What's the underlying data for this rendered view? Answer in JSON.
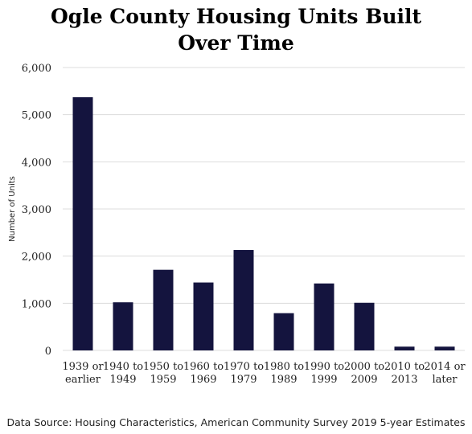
{
  "chart_data": {
    "type": "bar",
    "title_lines": [
      "Ogle County Housing Units Built",
      "Over Time"
    ],
    "ylabel": "Number of Units",
    "xlabel": "",
    "categories": [
      [
        "1939 or",
        "earlier"
      ],
      [
        "1940 to",
        "1949"
      ],
      [
        "1950 to",
        "1959"
      ],
      [
        "1960 to",
        "1969"
      ],
      [
        "1970 to",
        "1979"
      ],
      [
        "1980 to",
        "1989"
      ],
      [
        "1990 to",
        "1999"
      ],
      [
        "2000 to",
        "2009"
      ],
      [
        "2010 to",
        "2013"
      ],
      [
        "2014 or",
        "later"
      ]
    ],
    "values": [
      5370,
      1020,
      1710,
      1440,
      2130,
      790,
      1420,
      1010,
      80,
      80
    ],
    "ylim": [
      0,
      6000
    ],
    "yticks": [
      0,
      1000,
      2000,
      3000,
      4000,
      5000,
      6000
    ],
    "ytick_labels": [
      "0",
      "1,000",
      "2,000",
      "3,000",
      "4,000",
      "5,000",
      "6,000"
    ],
    "bar_color": "#14143e",
    "grid": true,
    "grid_color": "#dcdcdc",
    "legend": "none"
  },
  "source_note": "Data Source: Housing Characteristics, American Community Survey 2019 5-year Estimates"
}
